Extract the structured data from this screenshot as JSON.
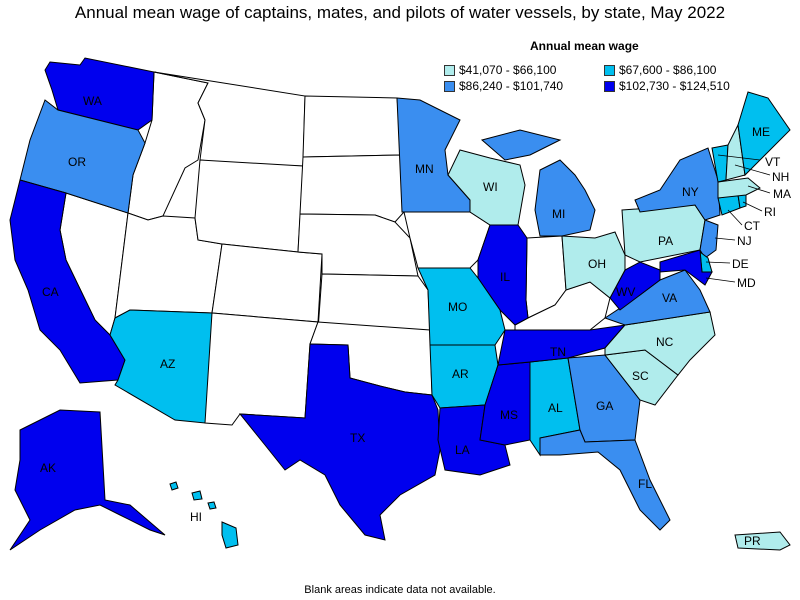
{
  "title": "Annual mean wage of captains, mates, and pilots of water vessels, by state, May 2022",
  "legend": {
    "title": "Annual mean wage",
    "items": [
      {
        "label": "$41,070 - $66,100",
        "color": "#b0ecec"
      },
      {
        "label": "$67,600 - $86,100",
        "color": "#00bfef"
      },
      {
        "label": "$86,240 - $101,740",
        "color": "#3a8ef0"
      },
      {
        "label": "$102,730 - $124,510",
        "color": "#0000ee"
      }
    ]
  },
  "footnote": "Blank areas indicate data not available.",
  "colors": {
    "blank": "#ffffff",
    "c1": "#b0ecec",
    "c2": "#00bfef",
    "c3": "#3a8ef0",
    "c4": "#0000ee"
  },
  "states": {
    "WA": "WA",
    "OR": "OR",
    "CA": "CA",
    "AZ": "AZ",
    "TX": "TX",
    "MN": "MN",
    "WI": "WI",
    "MI": "MI",
    "IL": "IL",
    "MO": "MO",
    "AR": "AR",
    "LA": "LA",
    "MS": "MS",
    "AL": "AL",
    "TN": "TN",
    "GA": "GA",
    "FL": "FL",
    "SC": "SC",
    "NC": "NC",
    "VA": "VA",
    "WV": "WV",
    "OH": "OH",
    "PA": "PA",
    "NY": "NY",
    "ME": "ME",
    "VT": "VT",
    "NH": "NH",
    "MA": "MA",
    "RI": "RI",
    "CT": "CT",
    "NJ": "NJ",
    "DE": "DE",
    "MD": "MD",
    "AK": "AK",
    "HI": "HI",
    "PR": "PR"
  }
}
